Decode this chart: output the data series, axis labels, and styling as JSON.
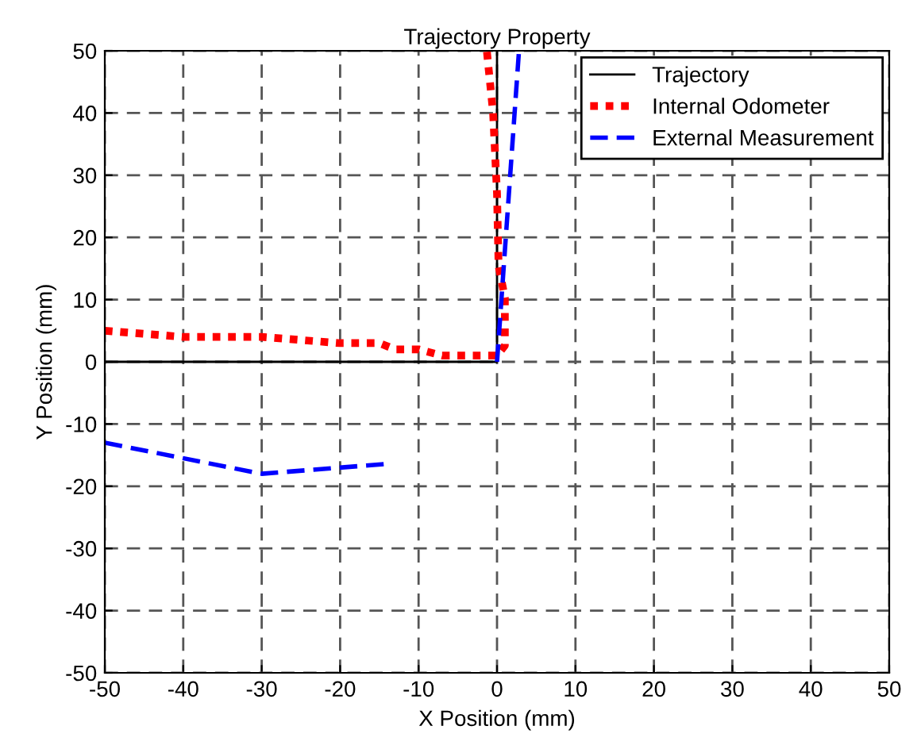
{
  "chart_data": {
    "type": "line",
    "title": "Trajectory Property",
    "xlabel": "X Position (mm)",
    "ylabel": "Y Position (mm)",
    "xlim": [
      -50,
      50
    ],
    "ylim": [
      -50,
      50
    ],
    "xticks": [
      -50,
      -40,
      -30,
      -20,
      -10,
      0,
      10,
      20,
      30,
      40,
      50
    ],
    "yticks": [
      -50,
      -40,
      -30,
      -20,
      -10,
      0,
      10,
      20,
      30,
      40,
      50
    ],
    "grid": true,
    "legend": "top right",
    "series": [
      {
        "name": "Trajectory",
        "color": "#000000",
        "line_style": "solid",
        "x": [
          -50,
          0,
          0
        ],
        "values": [
          0,
          0,
          50
        ]
      },
      {
        "name": "Internal Odometer",
        "color": "#ff0000",
        "line_style": "dotted",
        "x": [
          -50,
          -45,
          -40,
          -35,
          -30,
          -25,
          -20,
          -15,
          -13,
          -10,
          -7,
          -3,
          -1,
          0,
          1,
          1,
          0.2,
          0,
          -0.5,
          -1.3
        ],
        "values": [
          5,
          4.5,
          4,
          4,
          4,
          3.5,
          3,
          3,
          2,
          2,
          1,
          1,
          1,
          1,
          2.6,
          10.3,
          15.4,
          27,
          40,
          50
        ]
      },
      {
        "name": "External Measurement",
        "color": "#0000ff",
        "line_style": "dashed",
        "x": [
          0,
          2.8
        ],
        "values": [
          0,
          50
        ]
      },
      {
        "color": "#0000ff",
        "line_style": "dashed",
        "x": [
          -50,
          -30,
          -13.9
        ],
        "values": [
          -13,
          -18,
          -16.4
        ]
      }
    ]
  }
}
